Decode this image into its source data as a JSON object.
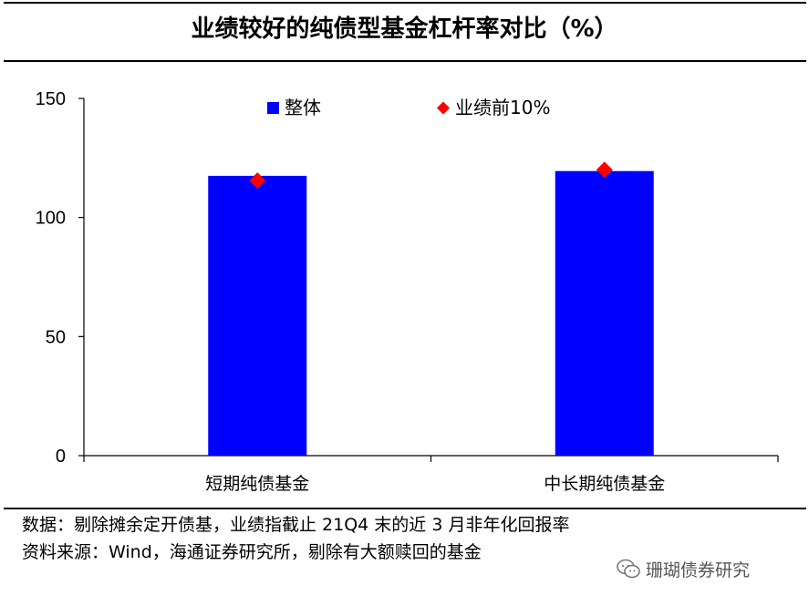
{
  "title": "业绩较好的纯债型基金杠杆率对比（%）",
  "chart_data": {
    "type": "bar",
    "categories": [
      "短期纯债基金",
      "中长期纯债基金"
    ],
    "series": [
      {
        "name": "整体",
        "kind": "bar",
        "color": "#0000FF",
        "values": [
          117.5,
          119.5
        ]
      },
      {
        "name": "业绩前10%",
        "kind": "marker",
        "marker": "diamond",
        "color": "#FF0000",
        "values": [
          115.5,
          120
        ]
      }
    ],
    "yticks": [
      0,
      50,
      100,
      150
    ],
    "ylim": [
      0,
      150
    ],
    "grid": false,
    "legend": "top-center"
  },
  "notes": {
    "line1": "数据：剔除摊余定开债基，业绩指截止 21Q4 末的近 3 月非年化回报率",
    "line2": "资料来源：Wind，海通证券研究所，剔除有大额赎回的基金"
  },
  "watermark": {
    "text": "珊瑚债券研究",
    "icon": "wechat-icon"
  }
}
